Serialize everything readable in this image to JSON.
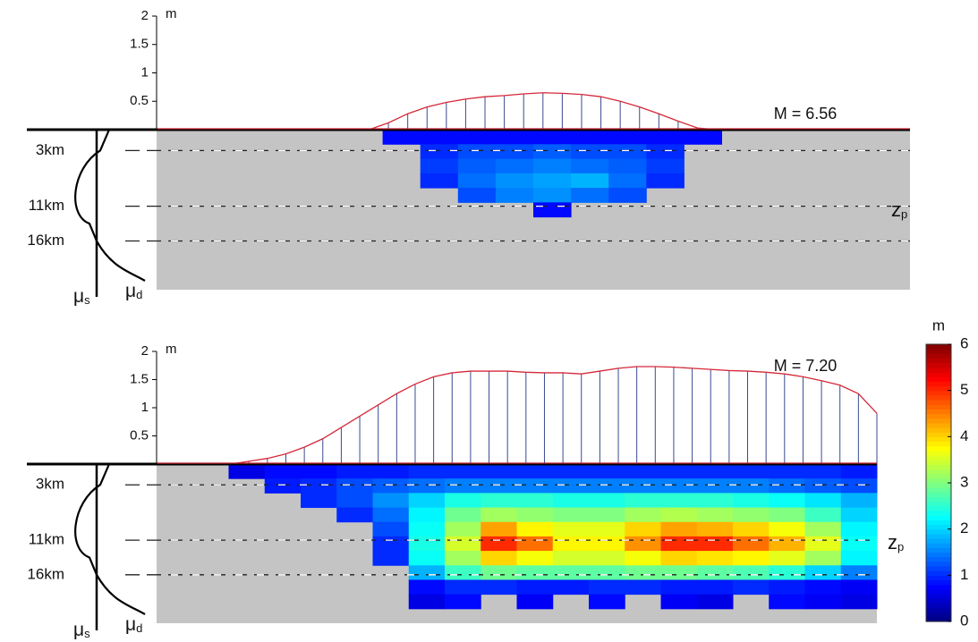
{
  "chart_data": [
    {
      "type": "slip-section",
      "annotation": "M = 6.56",
      "hypocenter_label": {
        "base": "z",
        "sub": "p"
      },
      "friction_labels": [
        {
          "base": "μ",
          "sub": "s"
        },
        {
          "base": "μ",
          "sub": "d"
        }
      ],
      "profile": {
        "unit": "m",
        "ylim": [
          0,
          2
        ],
        "yticks": [
          0.5,
          1,
          1.5,
          2
        ],
        "values": [
          0,
          0,
          0,
          0,
          0,
          0,
          0,
          0,
          0,
          0,
          0,
          0,
          0.12,
          0.28,
          0.4,
          0.48,
          0.54,
          0.58,
          0.6,
          0.63,
          0.65,
          0.64,
          0.62,
          0.58,
          0.5,
          0.4,
          0.28,
          0.15,
          0.03,
          0,
          0,
          0,
          0,
          0,
          0,
          0,
          0,
          0,
          0,
          0
        ]
      },
      "depth": {
        "ylim": [
          0,
          23
        ],
        "yticks": [
          {
            "value": 3,
            "label": "3km"
          },
          {
            "value": 11,
            "label": "11km"
          },
          {
            "value": 16,
            "label": "16km"
          }
        ]
      },
      "slip_grid": [
        [
          null,
          null,
          null,
          null,
          null,
          null,
          0.8,
          0.8,
          0.8,
          0.8,
          0.8,
          0.8,
          0.8,
          0.8,
          0.8,
          null,
          null,
          null,
          null,
          null
        ],
        [
          null,
          null,
          null,
          null,
          null,
          null,
          null,
          1.0,
          1.2,
          1.2,
          1.3,
          1.2,
          1.2,
          1.0,
          null,
          null,
          null,
          null,
          null,
          null
        ],
        [
          null,
          null,
          null,
          null,
          null,
          null,
          null,
          1.1,
          1.3,
          1.4,
          1.5,
          1.4,
          1.3,
          1.1,
          null,
          null,
          null,
          null,
          null,
          null
        ],
        [
          null,
          null,
          null,
          null,
          null,
          null,
          null,
          1.0,
          1.4,
          1.6,
          1.7,
          1.8,
          1.4,
          1.0,
          null,
          null,
          null,
          null,
          null,
          null
        ],
        [
          null,
          null,
          null,
          null,
          null,
          null,
          null,
          null,
          1.2,
          1.5,
          1.6,
          1.4,
          1.2,
          null,
          null,
          null,
          null,
          null,
          null,
          null
        ],
        [
          null,
          null,
          null,
          null,
          null,
          null,
          null,
          null,
          null,
          null,
          0.8,
          null,
          null,
          null,
          null,
          null,
          null,
          null,
          null,
          null
        ],
        [
          null,
          null,
          null,
          null,
          null,
          null,
          null,
          null,
          null,
          null,
          null,
          null,
          null,
          null,
          null,
          null,
          null,
          null,
          null,
          null
        ],
        [
          null,
          null,
          null,
          null,
          null,
          null,
          null,
          null,
          null,
          null,
          null,
          null,
          null,
          null,
          null,
          null,
          null,
          null,
          null,
          null
        ],
        [
          null,
          null,
          null,
          null,
          null,
          null,
          null,
          null,
          null,
          null,
          null,
          null,
          null,
          null,
          null,
          null,
          null,
          null,
          null,
          null
        ],
        [
          null,
          null,
          null,
          null,
          null,
          null,
          null,
          null,
          null,
          null,
          null,
          null,
          null,
          null,
          null,
          null,
          null,
          null,
          null,
          null
        ],
        [
          null,
          null,
          null,
          null,
          null,
          null,
          null,
          null,
          null,
          null,
          null,
          null,
          null,
          null,
          null,
          null,
          null,
          null,
          null,
          null
        ]
      ]
    },
    {
      "type": "slip-section",
      "annotation": "M = 7.20",
      "hypocenter_label": {
        "base": "z",
        "sub": "p"
      },
      "friction_labels": [
        {
          "base": "μ",
          "sub": "s"
        },
        {
          "base": "μ",
          "sub": "d"
        }
      ],
      "profile": {
        "unit": "m",
        "ylim": [
          0,
          2
        ],
        "yticks": [
          0.5,
          1,
          1.5,
          2
        ],
        "values": [
          0,
          0,
          0,
          0,
          0,
          0.05,
          0.1,
          0.18,
          0.3,
          0.45,
          0.65,
          0.85,
          1.05,
          1.25,
          1.42,
          1.55,
          1.62,
          1.65,
          1.65,
          1.65,
          1.63,
          1.62,
          1.62,
          1.6,
          1.65,
          1.7,
          1.73,
          1.73,
          1.72,
          1.7,
          1.68,
          1.66,
          1.65,
          1.63,
          1.6,
          1.55,
          1.48,
          1.4,
          1.25,
          0.9
        ]
      },
      "depth": {
        "ylim": [
          0,
          23
        ],
        "yticks": [
          {
            "value": 3,
            "label": "3km"
          },
          {
            "value": 11,
            "label": "11km"
          },
          {
            "value": 16,
            "label": "16km"
          }
        ]
      },
      "slip_grid": [
        [
          null,
          null,
          0.6,
          0.8,
          0.8,
          0.9,
          0.9,
          1.0,
          1.0,
          1.0,
          1.0,
          1.0,
          1.0,
          1.0,
          1.0,
          1.0,
          1.0,
          1.0,
          1.0,
          0.9
        ],
        [
          null,
          null,
          null,
          0.9,
          1.0,
          1.2,
          1.3,
          1.4,
          1.5,
          1.5,
          1.5,
          1.5,
          1.5,
          1.5,
          1.5,
          1.5,
          1.5,
          1.4,
          1.3,
          1.2
        ],
        [
          null,
          null,
          null,
          null,
          1.0,
          1.2,
          1.6,
          2.0,
          2.4,
          2.5,
          2.5,
          2.4,
          2.4,
          2.5,
          2.5,
          2.5,
          2.4,
          2.3,
          2.1,
          1.8
        ],
        [
          null,
          null,
          null,
          null,
          null,
          1.0,
          1.4,
          2.2,
          2.9,
          3.2,
          3.1,
          3.0,
          3.0,
          3.2,
          3.3,
          3.2,
          3.1,
          3.0,
          2.6,
          2.0
        ],
        [
          null,
          null,
          null,
          null,
          null,
          null,
          1.2,
          2.3,
          3.2,
          4.3,
          3.8,
          3.6,
          3.6,
          4.0,
          4.3,
          4.2,
          4.0,
          3.7,
          3.2,
          2.2
        ],
        [
          null,
          null,
          null,
          null,
          null,
          null,
          1.0,
          2.4,
          3.5,
          5.0,
          4.6,
          3.8,
          3.8,
          4.4,
          5.0,
          5.0,
          4.6,
          4.2,
          3.6,
          2.3
        ],
        [
          null,
          null,
          null,
          null,
          null,
          null,
          1.0,
          2.3,
          3.2,
          4.0,
          3.7,
          3.5,
          3.5,
          3.7,
          4.0,
          3.9,
          3.8,
          3.6,
          3.2,
          2.2
        ],
        [
          null,
          null,
          null,
          null,
          null,
          null,
          null,
          1.8,
          2.6,
          2.9,
          2.8,
          2.8,
          2.8,
          2.9,
          2.9,
          2.8,
          2.7,
          2.5,
          2.0,
          1.5
        ],
        [
          null,
          null,
          null,
          null,
          null,
          null,
          null,
          0.8,
          1.0,
          1.0,
          0.9,
          0.9,
          1.0,
          1.0,
          0.9,
          0.9,
          1.0,
          0.9,
          0.8,
          0.7
        ],
        [
          null,
          null,
          null,
          null,
          null,
          null,
          null,
          0.6,
          0.8,
          null,
          0.7,
          null,
          0.8,
          null,
          0.7,
          0.6,
          null,
          0.8,
          0.7,
          0.6
        ],
        [
          null,
          null,
          null,
          null,
          null,
          null,
          null,
          null,
          null,
          null,
          null,
          null,
          null,
          null,
          null,
          null,
          null,
          null,
          null,
          null
        ]
      ],
      "colorbar": {
        "label": "m",
        "lim": [
          0,
          6
        ],
        "ticks": [
          0,
          1,
          2,
          3,
          4,
          5,
          6
        ]
      }
    }
  ]
}
